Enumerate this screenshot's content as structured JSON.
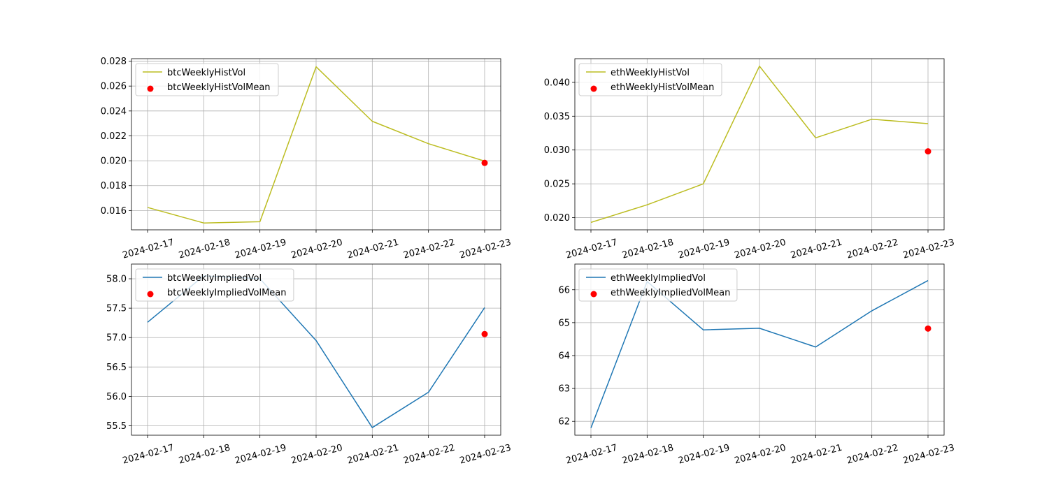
{
  "chart_data": [
    {
      "type": "line",
      "x": [
        "2024-02-17",
        "2024-02-18",
        "2024-02-19",
        "2024-02-20",
        "2024-02-21",
        "2024-02-22",
        "2024-02-23"
      ],
      "series": [
        {
          "name": "btcWeeklyHistVol",
          "kind": "line",
          "color": "#bcbd22",
          "values": [
            0.01625,
            0.015,
            0.0151,
            0.02755,
            0.02317,
            0.02137,
            0.01997
          ]
        },
        {
          "name": "btcWeeklyHistVolMean",
          "kind": "scatter",
          "color": "#ff0000",
          "points": [
            {
              "x": "2024-02-23",
              "y": 0.01983
            }
          ]
        }
      ],
      "ylim": [
        0.01445,
        0.0282
      ],
      "yticks": [
        0.016,
        0.018,
        0.02,
        0.022,
        0.024,
        0.026,
        0.028
      ],
      "ytick_labels": [
        "0.016",
        "0.018",
        "0.020",
        "0.022",
        "0.024",
        "0.026",
        "0.028"
      ],
      "grid": true,
      "legend": "upper left"
    },
    {
      "type": "line",
      "x": [
        "2024-02-17",
        "2024-02-18",
        "2024-02-19",
        "2024-02-20",
        "2024-02-21",
        "2024-02-22",
        "2024-02-23"
      ],
      "series": [
        {
          "name": "ethWeeklyHistVol",
          "kind": "line",
          "color": "#bcbd22",
          "values": [
            0.0193,
            0.0219,
            0.025,
            0.0424,
            0.0318,
            0.03455,
            0.0339
          ]
        },
        {
          "name": "ethWeeklyHistVolMean",
          "kind": "scatter",
          "color": "#ff0000",
          "points": [
            {
              "x": "2024-02-23",
              "y": 0.0298
            }
          ]
        }
      ],
      "ylim": [
        0.0182,
        0.0435
      ],
      "yticks": [
        0.02,
        0.025,
        0.03,
        0.035,
        0.04
      ],
      "ytick_labels": [
        "0.020",
        "0.025",
        "0.030",
        "0.035",
        "0.040"
      ],
      "grid": true,
      "legend": "upper left"
    },
    {
      "type": "line",
      "x": [
        "2024-02-17",
        "2024-02-18",
        "2024-02-19",
        "2024-02-20",
        "2024-02-21",
        "2024-02-22",
        "2024-02-23"
      ],
      "series": [
        {
          "name": "btcWeeklyImpliedVol",
          "kind": "line",
          "color": "#1f77b4",
          "values": [
            57.26,
            58.05,
            58.0,
            56.95,
            55.47,
            56.07,
            57.51
          ]
        },
        {
          "name": "btcWeeklyImpliedVolMean",
          "kind": "scatter",
          "color": "#ff0000",
          "points": [
            {
              "x": "2024-02-23",
              "y": 57.06
            }
          ]
        }
      ],
      "ylim": [
        55.34,
        58.25
      ],
      "yticks": [
        55.5,
        56.0,
        56.5,
        57.0,
        57.5,
        58.0
      ],
      "ytick_labels": [
        "55.5",
        "56.0",
        "56.5",
        "57.0",
        "57.5",
        "58.0"
      ],
      "grid": true,
      "legend": "upper left"
    },
    {
      "type": "line",
      "x": [
        "2024-02-17",
        "2024-02-18",
        "2024-02-19",
        "2024-02-20",
        "2024-02-21",
        "2024-02-22",
        "2024-02-23"
      ],
      "series": [
        {
          "name": "ethWeeklyImpliedVol",
          "kind": "line",
          "color": "#1f77b4",
          "values": [
            61.8,
            66.25,
            64.78,
            64.83,
            64.26,
            65.36,
            66.28
          ]
        },
        {
          "name": "ethWeeklyImpliedVolMean",
          "kind": "scatter",
          "color": "#ff0000",
          "points": [
            {
              "x": "2024-02-23",
              "y": 64.82
            }
          ]
        }
      ],
      "ylim": [
        61.58,
        66.78
      ],
      "yticks": [
        62,
        63,
        64,
        65,
        66
      ],
      "ytick_labels": [
        "62",
        "63",
        "64",
        "65",
        "66"
      ],
      "grid": true,
      "legend": "upper left"
    }
  ]
}
